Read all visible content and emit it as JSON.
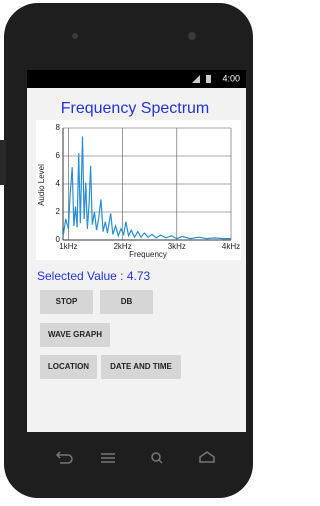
{
  "status_bar": {
    "time": "4:00"
  },
  "app": {
    "selected_value": "Selected Value : 4.73",
    "buttons": [
      "STOP",
      "DB",
      "WAVE GRAPH",
      "LOCATION",
      "DATE AND TIME"
    ]
  },
  "chart_data": {
    "type": "line",
    "title": "Frequency Spectrum",
    "x_label": "Frequency",
    "y_label": "Audio Level",
    "color": "#2a8fd6",
    "grid": true,
    "xlim": [
      900,
      4000
    ],
    "ylim": [
      0,
      8
    ],
    "xticks": [
      {
        "value": 1000,
        "label": "1kHz"
      },
      {
        "value": 2000,
        "label": "2kHz"
      },
      {
        "value": 3000,
        "label": "3kHz"
      },
      {
        "value": 4000,
        "label": "4kHz"
      }
    ],
    "yticks": [
      0,
      2,
      4,
      6,
      8
    ],
    "x": [
      900,
      950,
      1000,
      1030,
      1070,
      1100,
      1130,
      1160,
      1190,
      1220,
      1260,
      1290,
      1320,
      1350,
      1380,
      1410,
      1440,
      1480,
      1520,
      1560,
      1600,
      1640,
      1680,
      1720,
      1780,
      1820,
      1870,
      1920,
      1970,
      2020,
      2060,
      2110,
      2160,
      2220,
      2280,
      2340,
      2400,
      2470,
      2540,
      2620,
      2700,
      2800,
      2900,
      3000,
      3100,
      3250,
      3400,
      3550,
      3700,
      3850,
      4000
    ],
    "values": [
      0.2,
      1.5,
      0.8,
      3.2,
      5.2,
      1.0,
      2.4,
      0.9,
      6.2,
      1.2,
      7.4,
      1.5,
      4.1,
      0.8,
      2.5,
      5.3,
      1.1,
      2.0,
      0.7,
      1.6,
      2.9,
      0.6,
      1.3,
      0.5,
      1.9,
      0.4,
      1.0,
      0.3,
      0.8,
      0.4,
      1.3,
      0.3,
      0.7,
      0.2,
      0.6,
      0.2,
      0.5,
      0.2,
      0.4,
      0.15,
      0.35,
      0.15,
      0.3,
      0.1,
      0.25,
      0.1,
      0.2,
      0.1,
      0.15,
      0.1,
      0.1
    ]
  }
}
